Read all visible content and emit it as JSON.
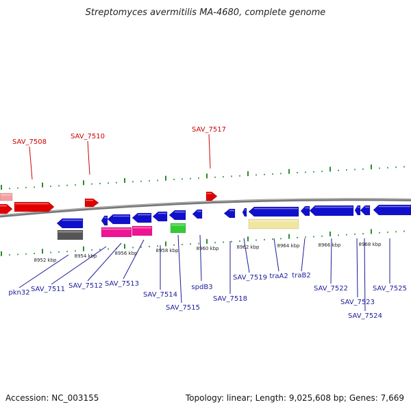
{
  "title": "Streptomyces avermitilis MA-4680, complete genome",
  "footer": {
    "accession": "Accession: NC_003155",
    "summary": "Topology: linear; Length: 9,025,608 bp; Genes: 7,669"
  },
  "colors": {
    "backbone": "#777777",
    "forward_gene": "#e00000",
    "reverse_gene": "#1010cc",
    "tick": "#2a8a2a",
    "pink": "#ee1493",
    "green": "#33cc33",
    "gray": "#555555",
    "cream": "#f0e6a0",
    "salmon": "#f3a0a0"
  },
  "tick_labels": [
    "8952 kbp",
    "8954 kbp",
    "8956 kbp",
    "8958 kbp",
    "8960 kbp",
    "8962 kbp",
    "8964 kbp",
    "8966 kbp",
    "8968 kbp"
  ],
  "gene_labels_top": [
    "SAV_7508",
    "SAV_7510",
    "SAV_7517"
  ],
  "gene_labels_bottom": [
    "pkn32",
    "SAV_7511",
    "SAV_7512",
    "SAV_7513",
    "SAV_7514",
    "SAV_7515",
    "spdB3",
    "SAV_7518",
    "SAV_7519",
    "traA2",
    "traB2",
    "SAV_7522",
    "SAV_7523",
    "SAV_7524",
    "SAV_7525"
  ]
}
